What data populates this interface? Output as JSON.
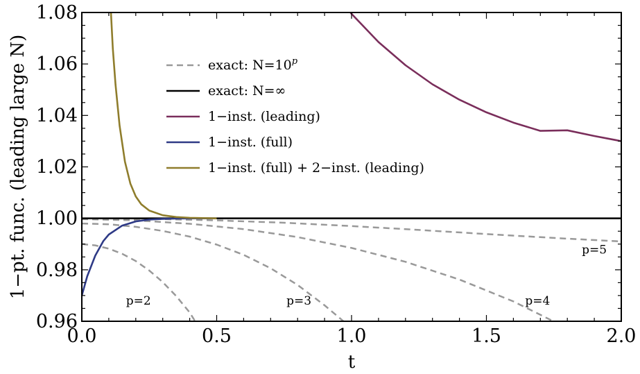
{
  "chart_data": {
    "type": "line",
    "title": "",
    "xlabel": "t",
    "ylabel": "1−pt. func. (leading large N)",
    "xlim": [
      0.0,
      2.0
    ],
    "ylim": [
      0.96,
      1.08
    ],
    "x_ticks": [
      "0.0",
      "0.5",
      "1.0",
      "1.5",
      "2.0"
    ],
    "y_ticks": [
      "0.96",
      "0.98",
      "1.00",
      "1.02",
      "1.04",
      "1.06",
      "1.08"
    ],
    "grid": false,
    "legend_position": "top-left",
    "legend": [
      {
        "label": "exact: N=10",
        "sup": "p",
        "color": "#999999",
        "dash": true
      },
      {
        "label": "exact: N=∞",
        "sup": "",
        "color": "#000000",
        "dash": false
      },
      {
        "label": "1−inst. (leading)",
        "sup": "",
        "color": "#7a2e5b",
        "dash": false
      },
      {
        "label": "1−inst. (full)",
        "sup": "",
        "color": "#2e3a86",
        "dash": false
      },
      {
        "label": "1−inst. (full) + 2−inst. (leading)",
        "sup": "",
        "color": "#8f7d2c",
        "dash": false
      }
    ],
    "series": [
      {
        "key": "exact_p2",
        "color": "#999999",
        "dash": true,
        "x": [
          0.0,
          0.05,
          0.1,
          0.15,
          0.2,
          0.25,
          0.3,
          0.35,
          0.4,
          0.42
        ],
        "y": [
          0.99,
          0.9895,
          0.9882,
          0.9862,
          0.9834,
          0.9797,
          0.9752,
          0.9698,
          0.9634,
          0.96
        ]
      },
      {
        "key": "exact_p3",
        "color": "#999999",
        "dash": true,
        "x": [
          0.0,
          0.1,
          0.2,
          0.3,
          0.4,
          0.5,
          0.6,
          0.7,
          0.8,
          0.9,
          0.97
        ],
        "y": [
          0.998,
          0.9977,
          0.9967,
          0.9951,
          0.9929,
          0.9898,
          0.9858,
          0.9806,
          0.9741,
          0.9662,
          0.96
        ]
      },
      {
        "key": "exact_p4",
        "color": "#999999",
        "dash": true,
        "x": [
          0.0,
          0.2,
          0.4,
          0.6,
          0.8,
          1.0,
          1.2,
          1.4,
          1.6,
          1.8,
          1.95
        ],
        "y": [
          0.9997,
          0.9992,
          0.9979,
          0.9958,
          0.9927,
          0.9885,
          0.9831,
          0.9762,
          0.9677,
          0.9573,
          0.96
        ]
      },
      {
        "key": "exact_p5",
        "color": "#999999",
        "dash": true,
        "x": [
          0.0,
          0.25,
          0.5,
          0.75,
          1.0,
          1.25,
          1.5,
          1.75,
          2.0
        ],
        "y": [
          0.99995,
          0.9998,
          0.9992,
          0.9983,
          0.997,
          0.9955,
          0.9939,
          0.9924,
          0.991
        ]
      },
      {
        "key": "exact_inf",
        "color": "#000000",
        "dash": false,
        "x": [
          0.0,
          2.0
        ],
        "y": [
          1.0,
          1.0
        ]
      },
      {
        "key": "inst1_leading",
        "color": "#7a2e5b",
        "dash": false,
        "x": [
          0.98,
          1.0,
          1.1,
          1.2,
          1.3,
          1.4,
          1.5,
          1.6,
          1.7,
          1.8,
          1.9,
          2.0
        ],
        "y": [
          1.082,
          1.0795,
          1.0685,
          1.0595,
          1.0521,
          1.0461,
          1.0412,
          1.0372,
          1.034,
          1.0342,
          1.032,
          1.03
        ]
      },
      {
        "key": "inst1_full",
        "color": "#2e3a86",
        "dash": false,
        "x": [
          0.0,
          0.02,
          0.05,
          0.08,
          0.1,
          0.15,
          0.2,
          0.25,
          0.3,
          0.35,
          0.4,
          0.5
        ],
        "y": [
          0.97,
          0.9775,
          0.9855,
          0.9912,
          0.9937,
          0.9972,
          0.9988,
          0.9995,
          0.9998,
          0.9999,
          1.0,
          1.0
        ]
      },
      {
        "key": "inst1_full_inst2_leading",
        "color": "#8f7d2c",
        "dash": false,
        "x": [
          0.108,
          0.115,
          0.125,
          0.14,
          0.16,
          0.18,
          0.2,
          0.22,
          0.25,
          0.3,
          0.35,
          0.4,
          0.45,
          0.5
        ],
        "y": [
          1.08,
          1.066,
          1.052,
          1.036,
          1.022,
          1.0135,
          1.0085,
          1.0055,
          1.003,
          1.0012,
          1.0005,
          1.0002,
          1.0001,
          1.0
        ]
      }
    ],
    "annotations": [
      {
        "text": "p=2",
        "x": 0.21,
        "y": 0.9665
      },
      {
        "text": "p=3",
        "x": 0.805,
        "y": 0.9665
      },
      {
        "text": "p=4",
        "x": 1.69,
        "y": 0.9665
      },
      {
        "text": "p=5",
        "x": 1.9,
        "y": 0.9863
      }
    ]
  }
}
